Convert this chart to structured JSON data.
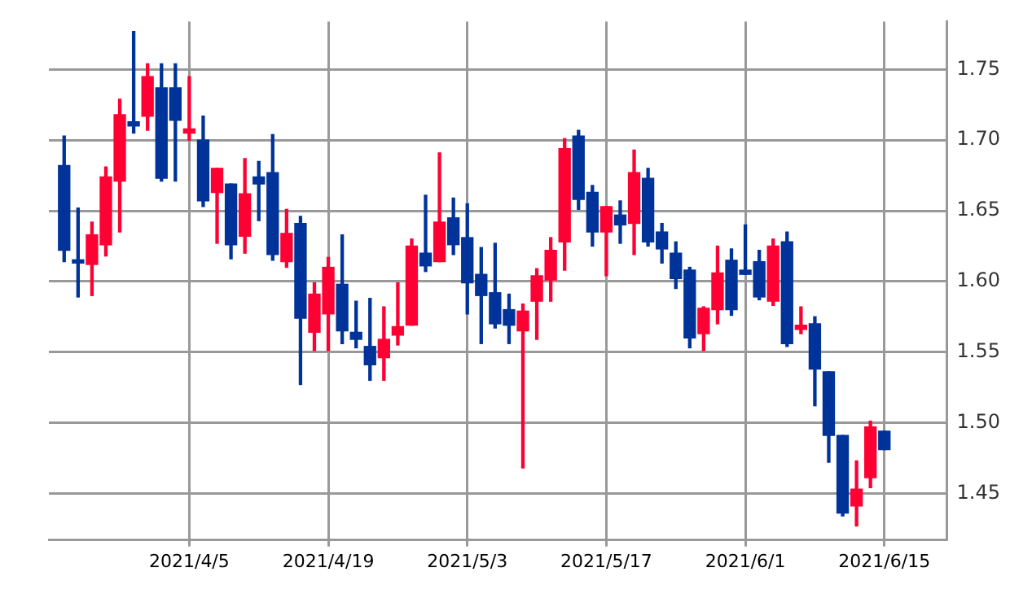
{
  "chart_data": {
    "type": "candlestick",
    "categories": [
      null,
      null,
      null,
      null,
      null,
      null,
      null,
      null,
      null,
      "2021/4/5",
      null,
      null,
      null,
      null,
      null,
      null,
      null,
      null,
      null,
      "2021/4/19",
      null,
      null,
      null,
      null,
      null,
      null,
      null,
      null,
      null,
      "2021/5/3",
      null,
      null,
      null,
      null,
      null,
      null,
      null,
      null,
      null,
      "2021/5/17",
      null,
      null,
      null,
      null,
      null,
      null,
      null,
      null,
      null,
      "2021/6/1",
      null,
      null,
      null,
      null,
      null,
      null,
      null,
      null,
      null,
      "2021/6/15"
    ],
    "ohlc": [
      [
        1.682,
        1.703,
        1.614,
        1.622
      ],
      [
        1.615,
        1.652,
        1.589,
        1.613
      ],
      [
        1.612,
        1.642,
        1.59,
        1.633
      ],
      [
        1.626,
        1.681,
        1.618,
        1.674
      ],
      [
        1.671,
        1.729,
        1.635,
        1.718
      ],
      [
        1.713,
        1.777,
        1.705,
        1.71
      ],
      [
        1.717,
        1.754,
        1.707,
        1.745
      ],
      [
        1.737,
        1.754,
        1.671,
        1.673
      ],
      [
        1.737,
        1.754,
        1.671,
        1.714
      ],
      [
        1.705,
        1.745,
        1.7,
        1.708
      ],
      [
        1.7,
        1.717,
        1.653,
        1.657
      ],
      [
        1.663,
        1.68,
        1.627,
        1.68
      ],
      [
        1.669,
        1.669,
        1.616,
        1.626
      ],
      [
        1.632,
        1.687,
        1.62,
        1.662
      ],
      [
        1.674,
        1.685,
        1.643,
        1.669
      ],
      [
        1.677,
        1.704,
        1.615,
        1.619
      ],
      [
        1.614,
        1.651,
        1.61,
        1.634
      ],
      [
        1.641,
        1.646,
        1.527,
        1.574
      ],
      [
        1.564,
        1.599,
        1.551,
        1.591
      ],
      [
        1.577,
        1.617,
        1.551,
        1.61
      ],
      [
        1.598,
        1.633,
        1.556,
        1.565
      ],
      [
        1.564,
        1.586,
        1.553,
        1.559
      ],
      [
        1.554,
        1.588,
        1.53,
        1.541
      ],
      [
        1.546,
        1.582,
        1.53,
        1.559
      ],
      [
        1.562,
        1.599,
        1.555,
        1.568
      ],
      [
        1.569,
        1.63,
        1.569,
        1.625
      ],
      [
        1.62,
        1.661,
        1.607,
        1.611
      ],
      [
        1.614,
        1.691,
        1.614,
        1.642
      ],
      [
        1.645,
        1.659,
        1.619,
        1.626
      ],
      [
        1.631,
        1.655,
        1.577,
        1.599
      ],
      [
        1.605,
        1.624,
        1.556,
        1.59
      ],
      [
        1.592,
        1.627,
        1.567,
        1.57
      ],
      [
        1.58,
        1.591,
        1.556,
        1.569
      ],
      [
        1.565,
        1.584,
        1.468,
        1.579
      ],
      [
        1.586,
        1.609,
        1.559,
        1.604
      ],
      [
        1.601,
        1.631,
        1.586,
        1.622
      ],
      [
        1.628,
        1.701,
        1.608,
        1.694
      ],
      [
        1.703,
        1.707,
        1.651,
        1.658
      ],
      [
        1.663,
        1.668,
        1.625,
        1.635
      ],
      [
        1.635,
        1.653,
        1.604,
        1.653
      ],
      [
        1.647,
        1.657,
        1.627,
        1.64
      ],
      [
        1.641,
        1.693,
        1.619,
        1.677
      ],
      [
        1.673,
        1.68,
        1.625,
        1.628
      ],
      [
        1.635,
        1.641,
        1.613,
        1.623
      ],
      [
        1.62,
        1.628,
        1.595,
        1.602
      ],
      [
        1.608,
        1.61,
        1.553,
        1.56
      ],
      [
        1.563,
        1.582,
        1.551,
        1.581
      ],
      [
        1.58,
        1.625,
        1.57,
        1.606
      ],
      [
        1.615,
        1.623,
        1.576,
        1.58
      ],
      [
        1.608,
        1.64,
        1.605,
        1.605
      ],
      [
        1.614,
        1.622,
        1.587,
        1.589
      ],
      [
        1.586,
        1.63,
        1.583,
        1.625
      ],
      [
        1.628,
        1.635,
        1.554,
        1.556
      ],
      [
        1.566,
        1.582,
        1.563,
        1.569
      ],
      [
        1.57,
        1.575,
        1.512,
        1.538
      ],
      [
        1.536,
        1.536,
        1.472,
        1.491
      ],
      [
        1.491,
        1.491,
        1.434,
        1.436
      ],
      [
        1.441,
        1.473,
        1.427,
        1.453
      ],
      [
        1.461,
        1.501,
        1.454,
        1.497
      ],
      [
        1.494,
        1.494,
        1.481,
        1.481
      ]
    ],
    "colors": [
      "#003399",
      "#003399",
      "#ff0033",
      "#ff0033",
      "#ff0033",
      "#003399",
      "#ff0033",
      "#003399",
      "#003399",
      "#ff0033",
      "#003399",
      "#ff0033",
      "#003399",
      "#ff0033",
      "#003399",
      "#003399",
      "#ff0033",
      "#003399",
      "#ff0033",
      "#ff0033",
      "#003399",
      "#003399",
      "#003399",
      "#ff0033",
      "#ff0033",
      "#ff0033",
      "#003399",
      "#ff0033",
      "#003399",
      "#003399",
      "#003399",
      "#003399",
      "#003399",
      "#ff0033",
      "#ff0033",
      "#ff0033",
      "#ff0033",
      "#003399",
      "#003399",
      "#ff0033",
      "#003399",
      "#ff0033",
      "#003399",
      "#003399",
      "#003399",
      "#003399",
      "#ff0033",
      "#ff0033",
      "#003399",
      "#003399",
      "#003399",
      "#ff0033",
      "#003399",
      "#ff0033",
      "#003399",
      "#003399",
      "#003399",
      "#ff0033",
      "#ff0033",
      "#003399"
    ],
    "ylim": [
      1.417,
      1.784
    ],
    "yticks": [
      {
        "value": 1.45,
        "label": "1.45"
      },
      {
        "value": 1.5,
        "label": "1.50"
      },
      {
        "value": 1.55,
        "label": "1.55"
      },
      {
        "value": 1.6,
        "label": "1.60"
      },
      {
        "value": 1.65,
        "label": "1.65"
      },
      {
        "value": 1.7,
        "label": "1.70"
      },
      {
        "value": 1.75,
        "label": "1.75"
      }
    ],
    "grid": true,
    "legend": false
  }
}
